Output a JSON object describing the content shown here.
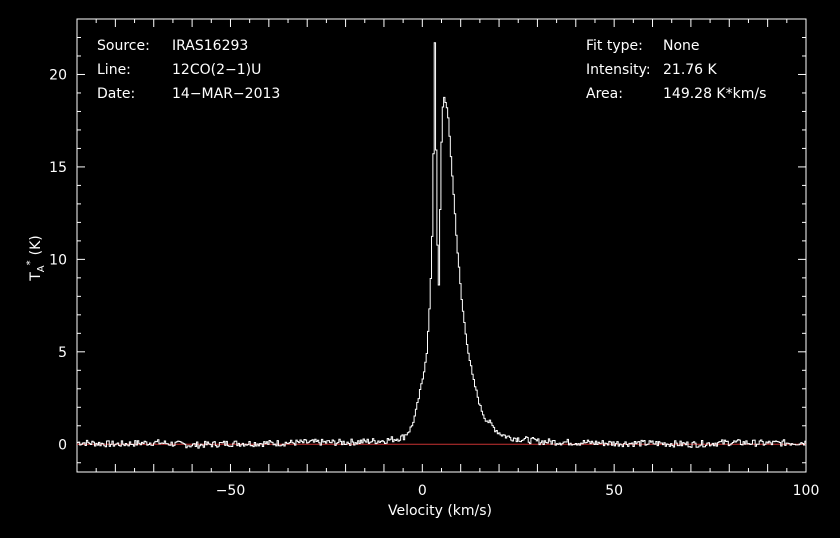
{
  "chart_data": {
    "type": "line",
    "xlabel": "Velocity (km/s)",
    "ylabel_main": "T",
    "ylabel_sub": "A",
    "ylabel_sup": "*",
    "ylabel_unit": "(K)",
    "xlim": [
      -90,
      100
    ],
    "ylim": [
      -1.5,
      23
    ],
    "x_ticks": [
      -50,
      0,
      50,
      100
    ],
    "x_tick_labels": [
      "−50",
      "0",
      "50",
      "100"
    ],
    "y_ticks": [
      0,
      5,
      10,
      15,
      20
    ],
    "y_tick_labels": [
      "0",
      "5",
      "10",
      "15",
      "20"
    ],
    "baseline": 0,
    "info_left": [
      {
        "key": "Source:",
        "value": "IRAS16293"
      },
      {
        "key": "Line:",
        "value": "12CO(2−1)U"
      },
      {
        "key": "Date:",
        "value": "14−MAR−2013"
      }
    ],
    "info_right": [
      {
        "key": "Fit type:",
        "value": "None"
      },
      {
        "key": "Intensity:",
        "value": "21.76 K"
      },
      {
        "key": "Area:",
        "value": "149.28 K*km/s"
      }
    ],
    "series": [
      {
        "points": [
          [
            -90,
            0.1
          ],
          [
            -80,
            0.0
          ],
          [
            -70,
            0.1
          ],
          [
            -60,
            -0.05
          ],
          [
            -50,
            0.05
          ],
          [
            -40,
            0.05
          ],
          [
            -30,
            0.1
          ],
          [
            -20,
            0.1
          ],
          [
            -15,
            0.15
          ],
          [
            -10,
            0.2
          ],
          [
            -7,
            0.3
          ],
          [
            -5,
            0.4
          ],
          [
            -3,
            0.9
          ],
          [
            -2,
            1.6
          ],
          [
            -1,
            2.6
          ],
          [
            0,
            3.6
          ],
          [
            1,
            5.0
          ],
          [
            1.5,
            6.5
          ],
          [
            2,
            8.5
          ],
          [
            2.5,
            12.0
          ],
          [
            2.8,
            16.5
          ],
          [
            3.0,
            20.5
          ],
          [
            3.1,
            21.76
          ],
          [
            3.3,
            19.0
          ],
          [
            3.6,
            13.0
          ],
          [
            3.9,
            9.5
          ],
          [
            4.1,
            8.0
          ],
          [
            4.4,
            11.5
          ],
          [
            4.8,
            16.0
          ],
          [
            5.2,
            18.3
          ],
          [
            5.6,
            18.8
          ],
          [
            6.0,
            18.5
          ],
          [
            6.5,
            17.8
          ],
          [
            7,
            16.5
          ],
          [
            8,
            13.5
          ],
          [
            9,
            10.5
          ],
          [
            10,
            8.0
          ],
          [
            11,
            6.2
          ],
          [
            12,
            4.8
          ],
          [
            13,
            3.6
          ],
          [
            14,
            2.8
          ],
          [
            15,
            2.0
          ],
          [
            16,
            1.5
          ],
          [
            18,
            1.0
          ],
          [
            20,
            0.6
          ],
          [
            22,
            0.4
          ],
          [
            25,
            0.3
          ],
          [
            30,
            0.15
          ],
          [
            40,
            0.1
          ],
          [
            50,
            0.05
          ],
          [
            60,
            0.05
          ],
          [
            70,
            0.0
          ],
          [
            80,
            0.1
          ],
          [
            90,
            0.05
          ],
          [
            100,
            0.1
          ]
        ]
      }
    ]
  }
}
